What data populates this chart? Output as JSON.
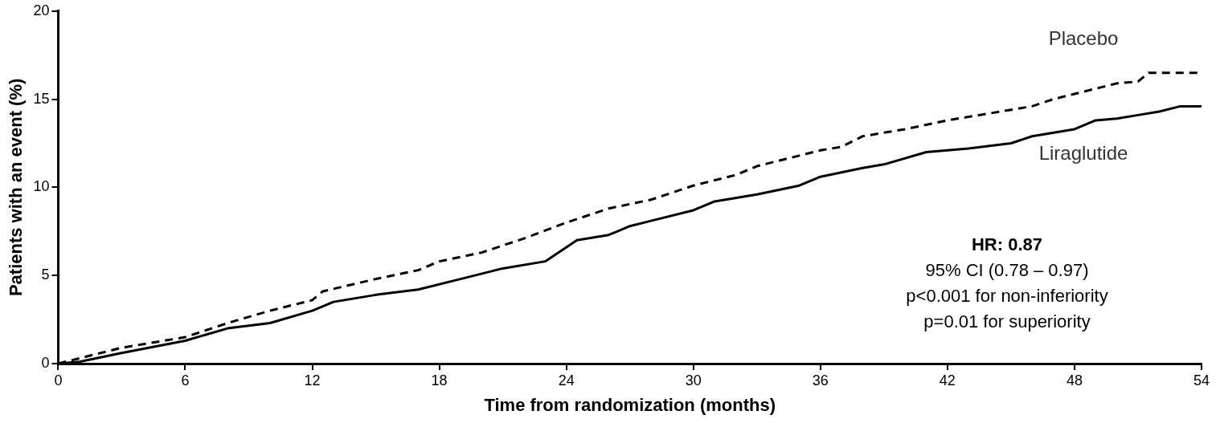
{
  "chart_data": {
    "type": "line",
    "xlabel": "Time from randomization (months)",
    "ylabel": "Patients with an event (%)",
    "xlim": [
      0,
      54
    ],
    "xticks": [
      0,
      6,
      12,
      18,
      24,
      30,
      36,
      42,
      48,
      54
    ],
    "ylim": [
      0,
      20
    ],
    "yticks": [
      0,
      5,
      10,
      15,
      20
    ],
    "grid": false,
    "legend": false,
    "marker": "none",
    "annotations": [
      "HR: 0.87",
      "95% CI (0.78 – 0.97)",
      "p<0.001 for non-inferiority",
      "p=0.01 for superiority"
    ],
    "series": [
      {
        "name": "Placebo",
        "color": "#000000",
        "line_style": "dashed",
        "x": [
          0,
          1,
          3,
          6,
          8,
          10,
          12,
          12.5,
          15,
          17,
          18,
          20,
          22,
          24,
          26,
          28,
          30,
          32,
          33,
          35,
          36,
          37,
          38,
          40,
          42,
          44,
          46,
          47,
          48,
          50,
          51,
          51.5,
          54
        ],
        "values": [
          0,
          0.3,
          0.9,
          1.5,
          2.3,
          3.0,
          3.6,
          4.1,
          4.8,
          5.3,
          5.8,
          6.3,
          7.1,
          8.0,
          8.8,
          9.3,
          10.1,
          10.7,
          11.2,
          11.8,
          12.1,
          12.3,
          12.9,
          13.3,
          13.8,
          14.2,
          14.6,
          15.0,
          15.3,
          15.9,
          16.0,
          16.5,
          16.5
        ]
      },
      {
        "name": "Liraglutide",
        "color": "#000000",
        "line_style": "solid",
        "x": [
          0,
          1,
          3,
          6,
          8,
          10,
          12,
          13,
          15,
          17,
          19,
          21,
          23,
          24.5,
          26,
          27,
          28,
          30,
          31,
          33,
          35,
          36,
          38,
          39,
          41,
          43,
          45,
          46,
          48,
          49,
          50,
          51,
          52,
          53,
          54
        ],
        "values": [
          0,
          0.1,
          0.6,
          1.3,
          2.0,
          2.3,
          3.0,
          3.5,
          3.9,
          4.2,
          4.8,
          5.4,
          5.8,
          7.0,
          7.3,
          7.8,
          8.1,
          8.7,
          9.2,
          9.6,
          10.1,
          10.6,
          11.1,
          11.3,
          12.0,
          12.2,
          12.5,
          12.9,
          13.3,
          13.8,
          13.9,
          14.1,
          14.3,
          14.6,
          14.6
        ]
      }
    ]
  }
}
